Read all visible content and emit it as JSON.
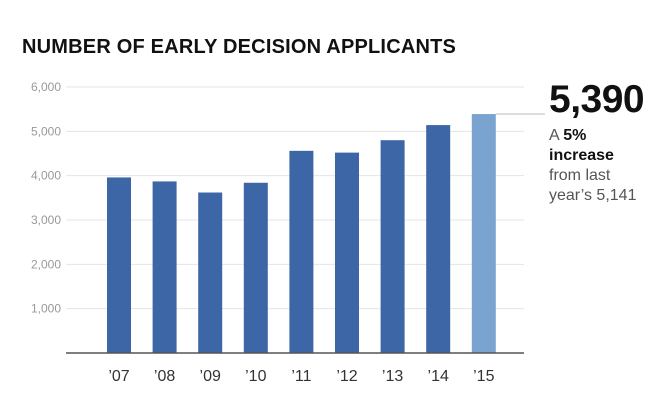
{
  "chart_data": {
    "type": "bar",
    "title": "NUMBER OF EARLY DECISION APPLICANTS",
    "categories": [
      "’07",
      "’08",
      "’09",
      "’10",
      "’11",
      "’12",
      "’13",
      "’14",
      "’15"
    ],
    "values": [
      3960,
      3870,
      3620,
      3840,
      4560,
      4520,
      4800,
      5141,
      5390
    ],
    "ylim": [
      0,
      6000
    ],
    "yticks": [
      "1,000",
      "2,000",
      "3,000",
      "4,000",
      "5,000",
      "6,000"
    ],
    "ytick_values": [
      1000,
      2000,
      3000,
      4000,
      5000,
      6000
    ],
    "grid": true,
    "colors": {
      "bar": "#3d66a6",
      "highlight": "#7ba3d0",
      "grid": "#e4e4e4",
      "axis": "#555555"
    },
    "highlight_index": 8
  },
  "callout": {
    "value": "5,390",
    "prefix": "A",
    "percent": "5%",
    "increase": "increase",
    "line3": "from last",
    "line4": "year’s 5,141"
  }
}
